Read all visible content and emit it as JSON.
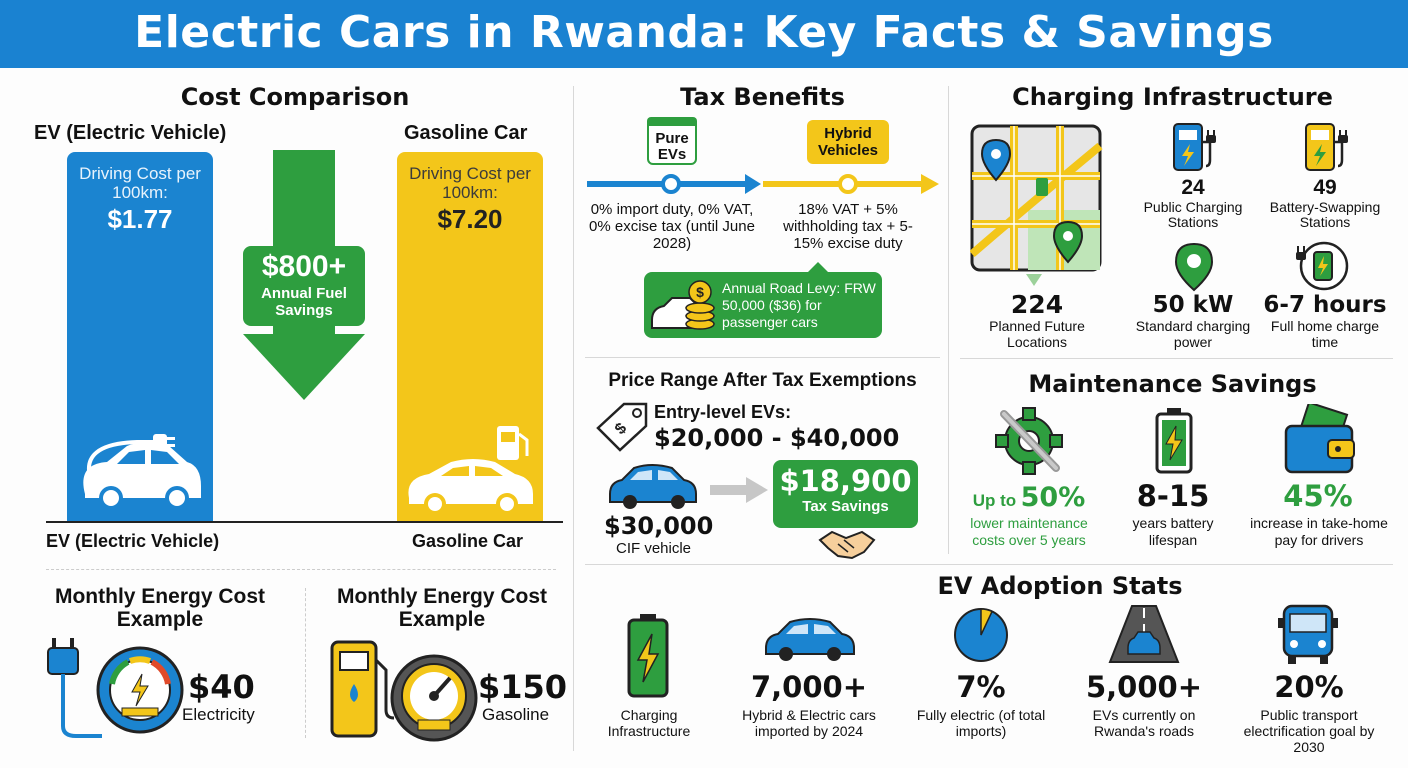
{
  "title": "Electric Cars in Rwanda: Key Facts & Savings",
  "cost": {
    "title": "Cost Comparison",
    "ev_label": "EV (Electric Vehicle)",
    "gas_label": "Gasoline Car",
    "ev_cost_label": "Driving Cost per 100km:",
    "ev_cost": "$1.77",
    "gas_cost_label": "Driving Cost per 100km:",
    "gas_cost": "$7.20",
    "savings_value": "$800+",
    "savings_label": "Annual Fuel Savings",
    "ev_bottom_label": "EV (Electric Vehicle)",
    "gas_bottom_label": "Gasoline Car"
  },
  "monthly": {
    "ev_title": "Monthly Energy Cost Example",
    "ev_value": "$40",
    "ev_label": "Electricity",
    "gas_title": "Monthly Energy Cost Example",
    "gas_value": "$150",
    "gas_label": "Gasoline"
  },
  "tax": {
    "title": "Tax Benefits",
    "pure_tag": "Pure EVs",
    "hybrid_tag": "Hybrid Vehicles",
    "pure_text": "0% import duty, 0% VAT, 0% excise tax (until June 2028)",
    "hybrid_text": "18% VAT + 5% withholding tax + 5-15% excise duty",
    "levy_text": "Annual Road Levy: FRW 50,000 ($36) for passenger cars"
  },
  "price": {
    "title": "Price Range After Tax Exemptions",
    "entry_label": "Entry-level EVs:",
    "entry_range": "$20,000 - $40,000",
    "cif_value": "$30,000",
    "cif_label": "CIF vehicle",
    "savings_value": "$18,900",
    "savings_label": "Tax Savings"
  },
  "charging": {
    "title": "Charging Infrastructure",
    "items": [
      {
        "value": "24",
        "label": "Public Charging Stations"
      },
      {
        "value": "49",
        "label": "Battery-Swapping Stations"
      },
      {
        "value": "224",
        "label": "Planned Future Locations"
      },
      {
        "value": "50 kW",
        "label": "Standard charging power"
      },
      {
        "value": "6-7 hours",
        "label": "Full home charge time"
      }
    ]
  },
  "maintenance": {
    "title": "Maintenance Savings",
    "m1_prefix": "Up to",
    "m1_value": "50%",
    "m1_text": "lower maintenance costs over 5 years",
    "m2_value": "8-15",
    "m2_text": "years battery lifespan",
    "m3_value": "45%",
    "m3_text": "increase in take-home pay for drivers"
  },
  "adoption": {
    "title": "EV Adoption Stats",
    "items": [
      {
        "value": "",
        "label": "Charging Infrastructure"
      },
      {
        "value": "7,000+",
        "label": "Hybrid & Electric cars imported by 2024"
      },
      {
        "value": "7%",
        "label": "Fully electric (of total imports)"
      },
      {
        "value": "5,000+",
        "label": "EVs currently on Rwanda's roads"
      },
      {
        "value": "20%",
        "label": "Public transport electrification goal by 2030"
      }
    ],
    "pie_fraction": 0.07
  },
  "colors": {
    "blue": "#1b84d0",
    "yellow": "#f3c61a",
    "green": "#2e9e3f"
  }
}
